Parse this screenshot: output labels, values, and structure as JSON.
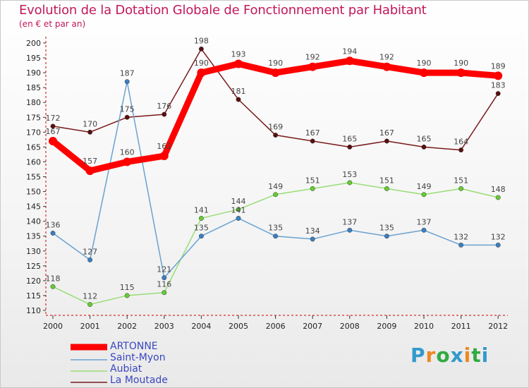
{
  "title": "Evolution de la Dotation Globale de Fonctionnement par Habitant",
  "subtitle": "(en € et par an)",
  "brand": {
    "text": "Proxiti",
    "colors": [
      "#3399cc",
      "#ee8822",
      "#33aa44",
      "#3399cc",
      "#ee8822",
      "#33aa44",
      "#3399cc"
    ]
  },
  "chart_data": {
    "type": "line",
    "title": "Evolution de la Dotation Globale de Fonctionnement par Habitant",
    "subtitle": "(en € et par an)",
    "xlabel": "",
    "ylabel": "",
    "x": [
      "2000",
      "2001",
      "2002",
      "2003",
      "2004",
      "2005",
      "2006",
      "2007",
      "2008",
      "2009",
      "2010",
      "2011",
      "2012"
    ],
    "ylim": [
      110,
      200
    ],
    "yticks": [
      110,
      115,
      120,
      125,
      130,
      135,
      140,
      145,
      150,
      155,
      160,
      165,
      170,
      175,
      180,
      185,
      190,
      195,
      200
    ],
    "grid": false,
    "legend_position": "bottom-left",
    "series": [
      {
        "name": "La Moutade",
        "color": "#7a1a1a",
        "dot": "#5a0f0f",
        "values": [
          172,
          170,
          175,
          176,
          198,
          181,
          169,
          167,
          165,
          167,
          165,
          164,
          183
        ]
      },
      {
        "name": "Aubiat",
        "color": "#99dd77",
        "dot": "#66cc33",
        "values": [
          118,
          112,
          115,
          116,
          141,
          144,
          149,
          151,
          153,
          151,
          149,
          151,
          148
        ]
      },
      {
        "name": "Saint-Myon",
        "color": "#6aa2d0",
        "dot": "#3a80c0",
        "values": [
          136,
          127,
          187,
          121,
          135,
          141,
          135,
          134,
          137,
          135,
          137,
          132,
          132
        ]
      },
      {
        "name": "ARTONNE",
        "color": "#ff0000",
        "dot": "#ff0000",
        "values": [
          167,
          157,
          160,
          162,
          190,
          193,
          190,
          192,
          194,
          192,
          190,
          190,
          189
        ]
      }
    ],
    "legend": [
      "ARTONNE",
      "Saint-Myon",
      "Aubiat",
      "La Moutade"
    ]
  }
}
